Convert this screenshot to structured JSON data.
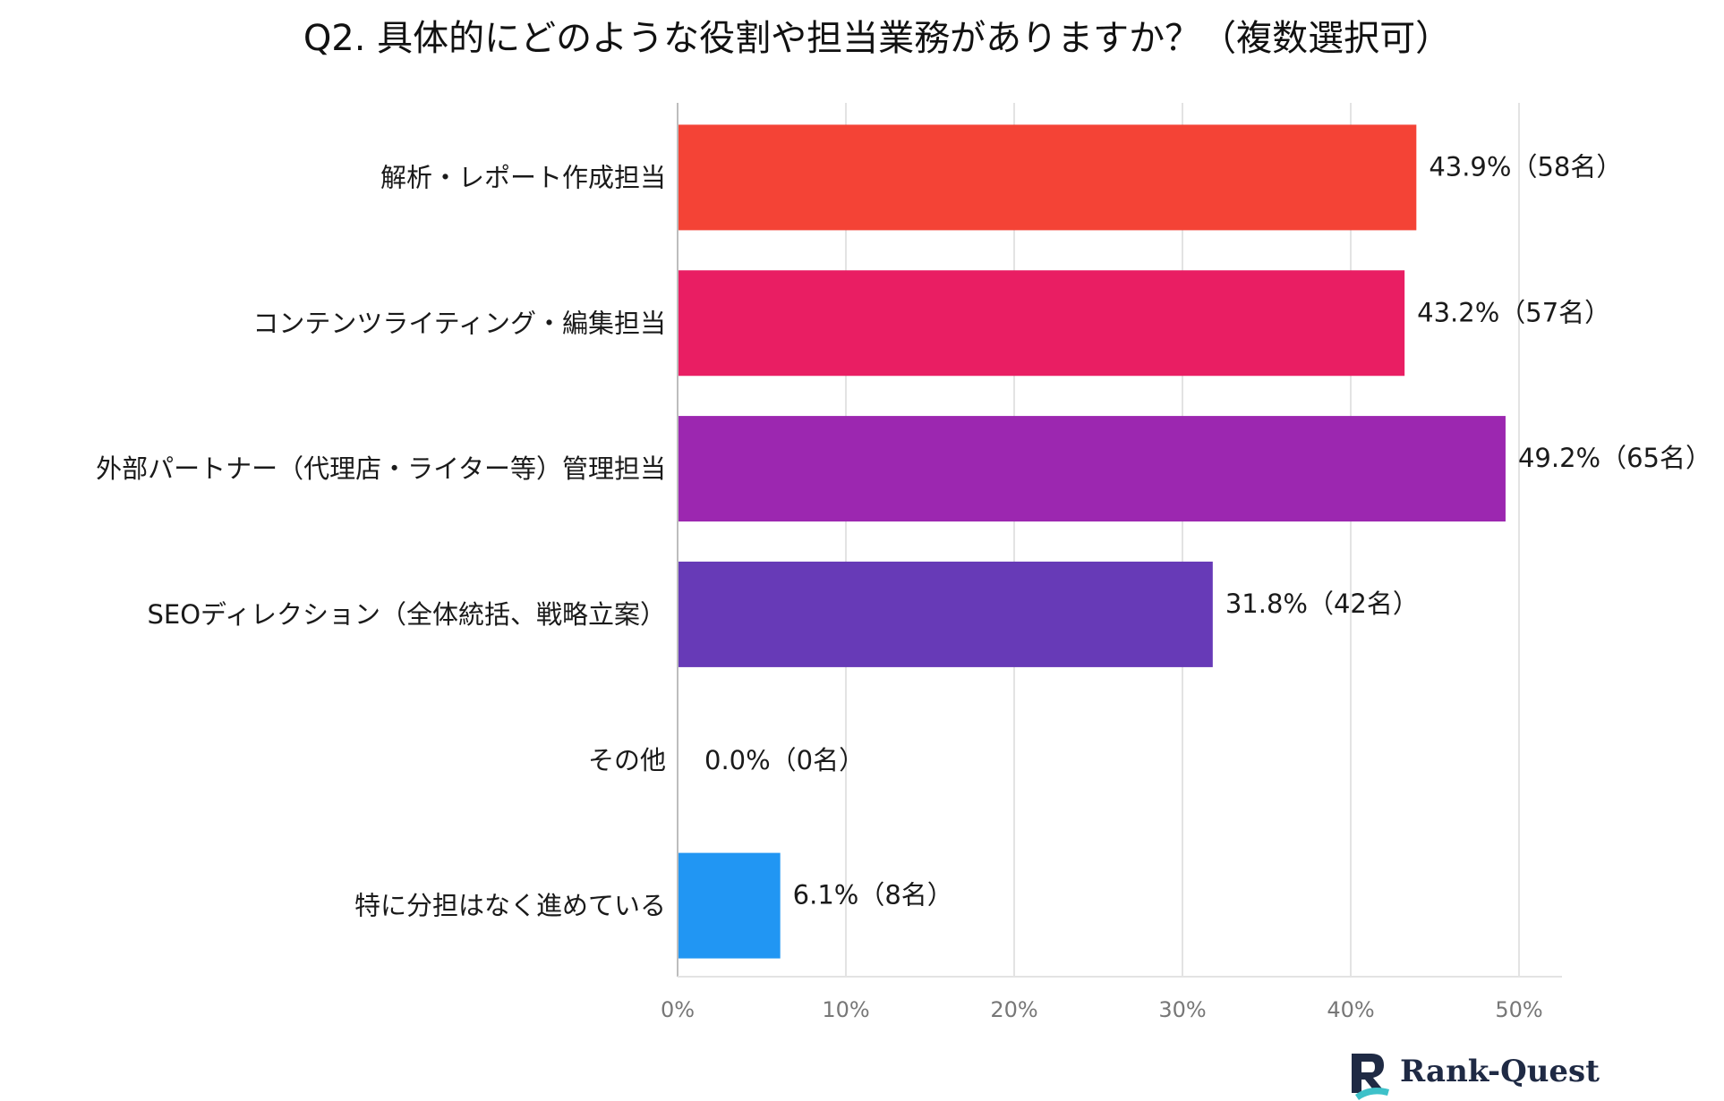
{
  "chart_data": {
    "type": "bar",
    "orientation": "horizontal",
    "title": "Q2. 具体的にどのような役割や担当業務がありますか？（複数選択可）",
    "categories": [
      "解析・レポート作成担当",
      "コンテンツライティング・編集担当",
      "外部パートナー（代理店・ライター等）管理担当",
      "SEOディレクション（全体統括、戦略立案）",
      "その他",
      "特に分担はなく進めている"
    ],
    "values": [
      43.9,
      43.2,
      49.2,
      31.8,
      0.0,
      6.1
    ],
    "data_labels": [
      "43.9%（58名）",
      "43.2%（57名）",
      "49.2%（65名）",
      "31.8%（42名）",
      "0.0%（0名）",
      "6.1%（8名）"
    ],
    "colors": [
      "#f44336",
      "#e91e63",
      "#9c27b0",
      "#673ab7",
      "#2196f3",
      "#2196f3"
    ],
    "xlim": [
      0,
      50
    ],
    "xticks": [
      "0%",
      "10%",
      "20%",
      "30%",
      "40%",
      "50%"
    ],
    "grid": true,
    "legend": "none",
    "xlabel": "",
    "ylabel": ""
  },
  "brand": {
    "name": "Rank-Quest",
    "icon": "rank-quest-logo-icon",
    "colors": [
      "#1f2a44",
      "#3ec1c9"
    ]
  }
}
